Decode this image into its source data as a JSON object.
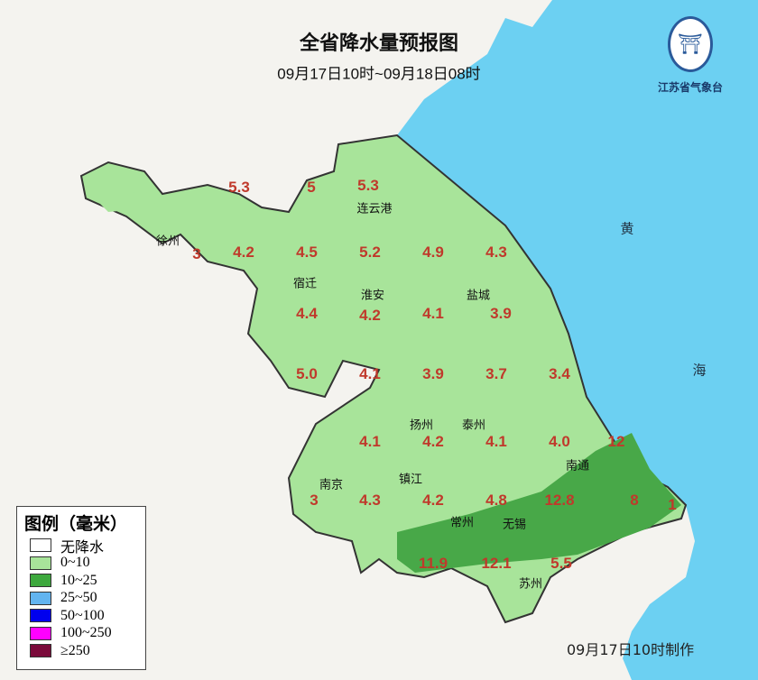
{
  "header": {
    "title": "全省降水量预报图",
    "subtitle": "09月17日10时~09月18日08时"
  },
  "logo": {
    "name": "江苏省气象台"
  },
  "colors": {
    "land": "#f4f3ef",
    "sea": "#6cd0f2",
    "light_green": "#a8e49a",
    "dark_green": "#48a848",
    "value": "#c0392b"
  },
  "sea_labels": [
    "黄",
    "海"
  ],
  "cities": [
    "连云港",
    "徐州",
    "宿迁",
    "淮安",
    "盐城",
    "扬州",
    "泰州",
    "南通",
    "南京",
    "镇江",
    "常州",
    "无锡",
    "苏州"
  ],
  "red_values": [
    "5.3",
    "5",
    "5.3",
    "3",
    "4.2",
    "4.5",
    "5.2",
    "4.9",
    "4.3",
    "4.4",
    "4.2",
    "4.1",
    "3.9",
    "5.0",
    "4.1",
    "3.9",
    "3.7",
    "3.4",
    "4.1",
    "4.2",
    "4.1",
    "4.0",
    "12",
    "3",
    "4.3",
    "4.2",
    "4.8",
    "12.8",
    "8",
    "1",
    "11.9",
    "12.1",
    "5.5"
  ],
  "legend": {
    "title": "图例（毫米）",
    "items": [
      {
        "label": "无降水",
        "color": "#ffffff"
      },
      {
        "label": "0~10",
        "color": "#a8e49a"
      },
      {
        "label": "10~25",
        "color": "#3da83d"
      },
      {
        "label": "25~50",
        "color": "#62b4f0"
      },
      {
        "label": "50~100",
        "color": "#0000ee"
      },
      {
        "label": "100~250",
        "color": "#ff00ff"
      },
      {
        "label": "≥250",
        "color": "#7a0a3a"
      }
    ]
  },
  "footer": {
    "made": "09月17日10时制作"
  }
}
